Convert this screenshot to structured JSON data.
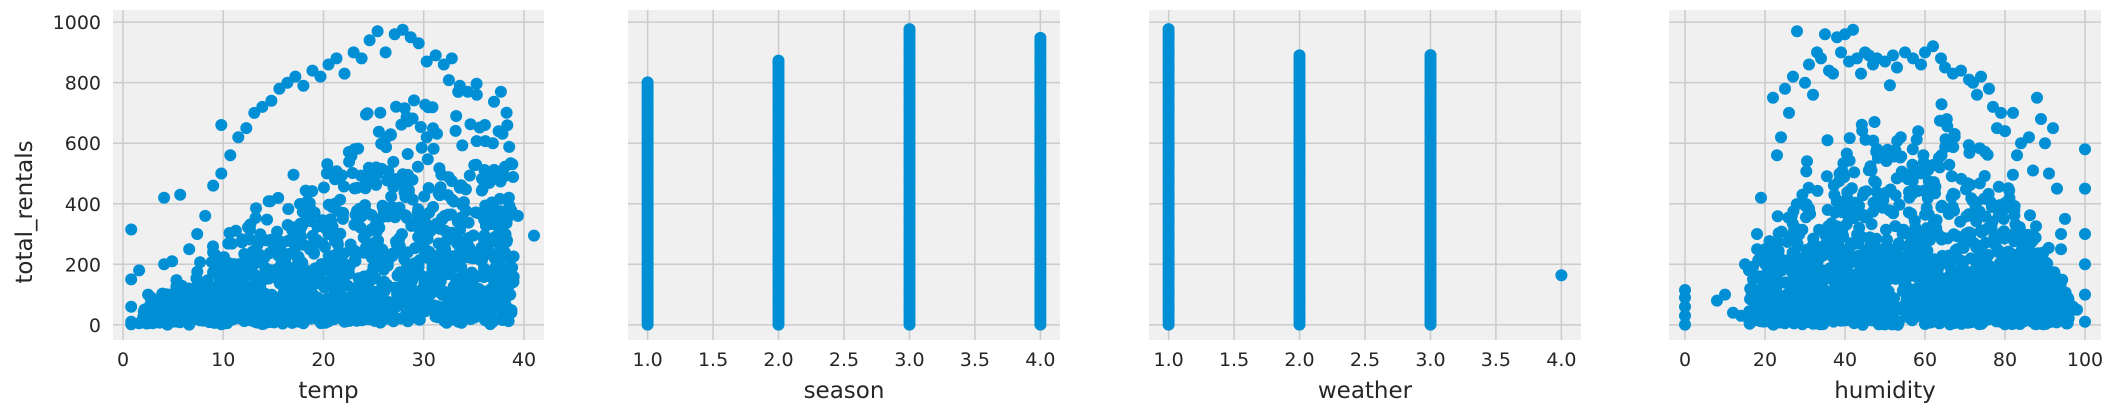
{
  "ylabel": "total_rentals",
  "colors": {
    "marker": "#008fd5",
    "panel_bg": "#f0f0f0",
    "grid": "#cbcbcb",
    "text": "#262626"
  },
  "chart_data": [
    {
      "type": "scatter",
      "xlabel": "temp",
      "ylabel": "total_rentals",
      "xlim": [
        -1,
        42
      ],
      "ylim": [
        -50,
        1040
      ],
      "xticks": [
        0,
        10,
        20,
        30,
        40
      ],
      "xtick_labels": [
        "0",
        "10",
        "20",
        "30",
        "40"
      ],
      "yticks": [
        0,
        200,
        400,
        600,
        800,
        1000
      ],
      "ytick_labels": [
        "0",
        "200",
        "400",
        "600",
        "800",
        "1000"
      ],
      "grid": true,
      "points": [
        [
          0.82,
          2
        ],
        [
          0.82,
          10
        ],
        [
          0.82,
          60
        ],
        [
          0.82,
          150
        ],
        [
          0.82,
          315
        ],
        [
          1.6,
          5
        ],
        [
          1.6,
          180
        ],
        [
          2.5,
          20
        ],
        [
          2.5,
          100
        ],
        [
          3.3,
          40
        ],
        [
          4.1,
          60
        ],
        [
          4.1,
          200
        ],
        [
          4.1,
          420
        ],
        [
          4.9,
          90
        ],
        [
          4.9,
          210
        ],
        [
          5.7,
          430
        ],
        [
          6.6,
          120
        ],
        [
          6.6,
          250
        ],
        [
          7.4,
          300
        ],
        [
          8.2,
          360
        ],
        [
          9.0,
          460
        ],
        [
          9.8,
          500
        ],
        [
          9.8,
          660
        ],
        [
          10.7,
          560
        ],
        [
          11.5,
          620
        ],
        [
          12.3,
          650
        ],
        [
          13.1,
          700
        ],
        [
          13.9,
          720
        ],
        [
          14.8,
          740
        ],
        [
          15.6,
          780
        ],
        [
          16.4,
          800
        ],
        [
          17.2,
          820
        ],
        [
          18.0,
          790
        ],
        [
          18.9,
          840
        ],
        [
          19.7,
          820
        ],
        [
          20.5,
          860
        ],
        [
          21.3,
          880
        ],
        [
          22.1,
          830
        ],
        [
          23.0,
          900
        ],
        [
          23.8,
          880
        ],
        [
          24.6,
          940
        ],
        [
          25.4,
          970
        ],
        [
          26.2,
          900
        ],
        [
          27.1,
          960
        ],
        [
          27.9,
          975
        ],
        [
          28.7,
          950
        ],
        [
          29.5,
          930
        ],
        [
          30.3,
          870
        ],
        [
          31.2,
          890
        ],
        [
          32.0,
          860
        ],
        [
          32.8,
          880
        ],
        [
          33.6,
          790
        ],
        [
          34.4,
          770
        ],
        [
          35.3,
          760
        ],
        [
          36.1,
          660
        ],
        [
          36.9,
          600
        ],
        [
          37.7,
          770
        ],
        [
          38.5,
          420
        ],
        [
          39.4,
          360
        ],
        [
          41.0,
          295
        ],
        [
          38.5,
          130
        ],
        [
          36.1,
          110
        ],
        [
          33.6,
          200
        ],
        [
          31.2,
          160
        ],
        [
          28.7,
          60
        ],
        [
          25.4,
          20
        ],
        [
          22.1,
          10
        ],
        [
          18.0,
          5
        ],
        [
          13.9,
          3
        ],
        [
          9.8,
          2
        ],
        [
          6.6,
          1
        ],
        [
          20.5,
          300
        ],
        [
          25.4,
          500
        ],
        [
          30.3,
          620
        ],
        [
          15.6,
          250
        ],
        [
          11.5,
          150
        ]
      ]
    },
    {
      "type": "scatter",
      "xlabel": "season",
      "xlim": [
        0.85,
        4.15
      ],
      "ylim": [
        -50,
        1040
      ],
      "xticks": [
        1.0,
        1.5,
        2.0,
        2.5,
        3.0,
        3.5,
        4.0
      ],
      "xtick_labels": [
        "1.0",
        "1.5",
        "2.0",
        "2.5",
        "3.0",
        "3.5",
        "4.0"
      ],
      "yticks": [
        0,
        200,
        400,
        600,
        800,
        1000
      ],
      "grid": true,
      "columns": [
        {
          "x": 1.0,
          "y_min": 1,
          "y_max": 801
        },
        {
          "x": 2.0,
          "y_min": 1,
          "y_max": 873
        },
        {
          "x": 3.0,
          "y_min": 1,
          "y_max": 977
        },
        {
          "x": 4.0,
          "y_min": 1,
          "y_max": 948
        }
      ]
    },
    {
      "type": "scatter",
      "xlabel": "weather",
      "xlim": [
        0.85,
        4.15
      ],
      "ylim": [
        -50,
        1040
      ],
      "xticks": [
        1.0,
        1.5,
        2.0,
        2.5,
        3.0,
        3.5,
        4.0
      ],
      "xtick_labels": [
        "1.0",
        "1.5",
        "2.0",
        "2.5",
        "3.0",
        "3.5",
        "4.0"
      ],
      "yticks": [
        0,
        200,
        400,
        600,
        800,
        1000
      ],
      "grid": true,
      "columns": [
        {
          "x": 1.0,
          "y_min": 1,
          "y_max": 977
        },
        {
          "x": 2.0,
          "y_min": 1,
          "y_max": 890
        },
        {
          "x": 3.0,
          "y_min": 1,
          "y_max": 891
        }
      ],
      "points": [
        [
          4.0,
          164
        ],
        [
          3.0,
          790
        ],
        [
          3.0,
          750
        ],
        [
          3.0,
          700
        ],
        [
          3.0,
          650
        ]
      ]
    },
    {
      "type": "scatter",
      "xlabel": "humidity",
      "xlim": [
        -4,
        104
      ],
      "ylim": [
        -50,
        1040
      ],
      "xticks": [
        0,
        20,
        40,
        60,
        80,
        100
      ],
      "xtick_labels": [
        "0",
        "20",
        "40",
        "60",
        "80",
        "100"
      ],
      "yticks": [
        0,
        200,
        400,
        600,
        800,
        1000
      ],
      "grid": true,
      "points": [
        [
          0,
          1
        ],
        [
          0,
          30
        ],
        [
          0,
          60
        ],
        [
          0,
          90
        ],
        [
          0,
          115
        ],
        [
          8,
          80
        ],
        [
          10,
          100
        ],
        [
          12,
          40
        ],
        [
          14,
          30
        ],
        [
          15,
          200
        ],
        [
          16,
          180
        ],
        [
          17,
          150
        ],
        [
          18,
          300
        ],
        [
          19,
          420
        ],
        [
          20,
          250
        ],
        [
          22,
          750
        ],
        [
          23,
          560
        ],
        [
          24,
          620
        ],
        [
          25,
          780
        ],
        [
          26,
          700
        ],
        [
          27,
          820
        ],
        [
          28,
          970
        ],
        [
          30,
          800
        ],
        [
          31,
          860
        ],
        [
          32,
          760
        ],
        [
          33,
          900
        ],
        [
          34,
          880
        ],
        [
          35,
          960
        ],
        [
          36,
          840
        ],
        [
          37,
          830
        ],
        [
          38,
          950
        ],
        [
          39,
          900
        ],
        [
          40,
          960
        ],
        [
          41,
          870
        ],
        [
          42,
          975
        ],
        [
          43,
          880
        ],
        [
          44,
          830
        ],
        [
          45,
          900
        ],
        [
          46,
          890
        ],
        [
          47,
          860
        ],
        [
          48,
          880
        ],
        [
          50,
          870
        ],
        [
          52,
          890
        ],
        [
          53,
          850
        ],
        [
          55,
          900
        ],
        [
          57,
          880
        ],
        [
          59,
          860
        ],
        [
          60,
          900
        ],
        [
          62,
          920
        ],
        [
          64,
          880
        ],
        [
          65,
          850
        ],
        [
          67,
          830
        ],
        [
          69,
          840
        ],
        [
          71,
          810
        ],
        [
          72,
          800
        ],
        [
          73,
          760
        ],
        [
          74,
          820
        ],
        [
          76,
          780
        ],
        [
          77,
          720
        ],
        [
          78,
          650
        ],
        [
          79,
          700
        ],
        [
          80,
          640
        ],
        [
          82,
          700
        ],
        [
          83,
          560
        ],
        [
          84,
          600
        ],
        [
          86,
          620
        ],
        [
          87,
          510
        ],
        [
          88,
          750
        ],
        [
          89,
          680
        ],
        [
          90,
          600
        ],
        [
          91,
          500
        ],
        [
          92,
          650
        ],
        [
          93,
          450
        ],
        [
          94,
          300
        ],
        [
          95,
          350
        ],
        [
          96,
          70
        ],
        [
          97,
          60
        ],
        [
          98,
          50
        ],
        [
          100,
          580
        ],
        [
          100,
          450
        ],
        [
          100,
          200
        ],
        [
          100,
          100
        ],
        [
          100,
          10
        ],
        [
          21,
          30
        ],
        [
          23,
          10
        ],
        [
          25,
          5
        ],
        [
          60,
          3
        ],
        [
          80,
          2
        ],
        [
          94,
          250
        ],
        [
          100,
          300
        ]
      ]
    }
  ]
}
